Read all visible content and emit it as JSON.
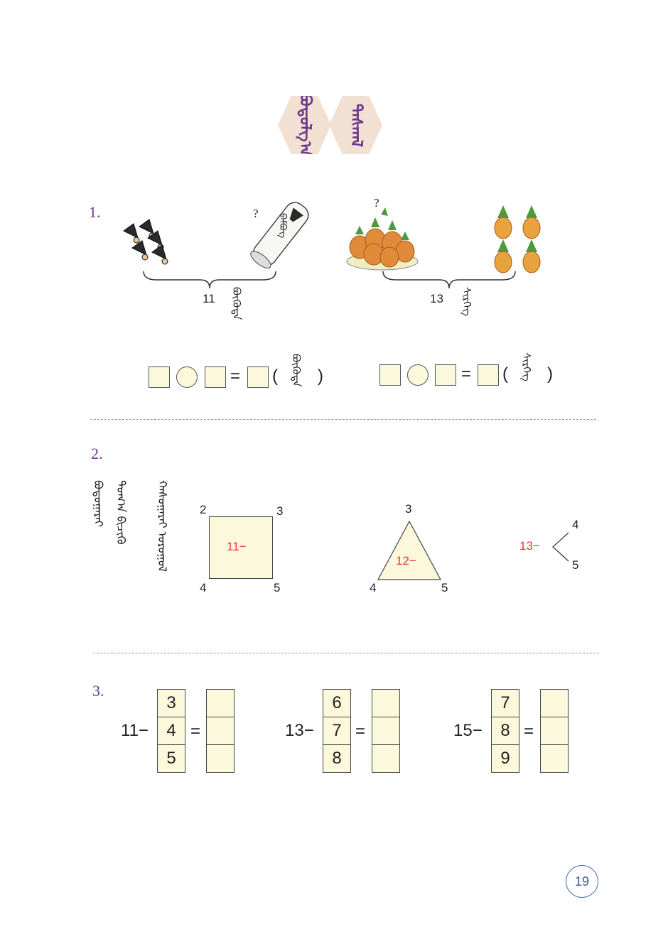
{
  "header": {
    "tile_left": "ᠪᠣᠳᠣᠯᠭ᠎ᠠ",
    "tile_right": "ᠳᠠᠰᠬᠠᠯ"
  },
  "section1": {
    "number": "1.",
    "left": {
      "question_mark": "?",
      "tube_label": "ᠪᠠᠮᠪᠦᠭ",
      "total": "11",
      "total_word": "ᠪᠦᠭᠦᠳᠡ",
      "eq": "=",
      "paren_open": "(",
      "paren_close": ")",
      "unit_word": "ᠪᠦᠭᠦᠳᠡ"
    },
    "right": {
      "question_mark": "?",
      "total": "13",
      "total_word": "ᠰᠢᠷᠬᠡᠭ",
      "eq": "=",
      "paren_open": "(",
      "paren_close": ")",
      "unit_word": "ᠰᠢᠷᠬᠡᠭ"
    }
  },
  "section2": {
    "number": "2.",
    "instructions": [
      "ᠪᠣᠳᠣᠭᠠᠷᠠᠢ",
      "ᠲᠣᠭ᠎ᠠ ᠪᠢᠴᠢᠬᠦ",
      "ᠬᠠᠰᠤᠭᠠᠷᠠᠢ ᠣᠷᠤᠭᠤᠯ"
    ],
    "square": {
      "corner_tl": "2",
      "corner_tr": "3",
      "corner_bl": "4",
      "corner_br": "5",
      "label": "11−"
    },
    "triangle": {
      "top": "3",
      "bottom_left": "4",
      "bottom_right": "5",
      "label": "12−"
    },
    "branch": {
      "label": "13−",
      "top": "4",
      "bottom": "5"
    }
  },
  "section3": {
    "number": "3.",
    "groups": [
      {
        "minuend": "11−",
        "subtrahends": [
          "3",
          "4",
          "5"
        ],
        "eq": "="
      },
      {
        "minuend": "13−",
        "subtrahends": [
          "6",
          "7",
          "8"
        ],
        "eq": "="
      },
      {
        "minuend": "15−",
        "subtrahends": [
          "7",
          "8",
          "9"
        ],
        "eq": "="
      }
    ]
  },
  "page_number": "19",
  "colors": {
    "accent_purple": "#6b3a8c",
    "tile_bg": "#f2e0d2",
    "box_fill": "#fcf8dc",
    "red_text": "#e23b3b",
    "dash_line": "#b27bbf"
  }
}
